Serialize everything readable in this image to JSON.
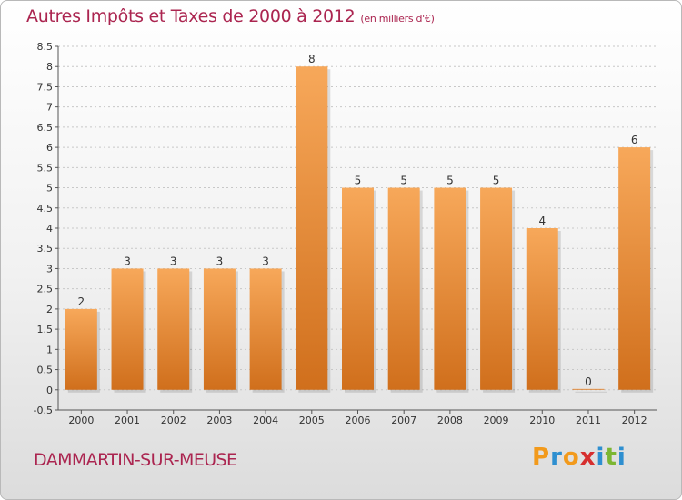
{
  "header": {
    "title": "Autres Impôts et Taxes de 2000 à 2012",
    "unit": "(en milliers d'€)"
  },
  "footer": {
    "location": "DAMMARTIN-SUR-MEUSE"
  },
  "logo": {
    "text": "Proxiti",
    "letters": [
      {
        "ch": "P",
        "color": "#f29a1c"
      },
      {
        "ch": "r",
        "color": "#2e8fd0"
      },
      {
        "ch": "o",
        "color": "#f29a1c"
      },
      {
        "ch": "x",
        "color": "#d62f2f"
      },
      {
        "ch": "i",
        "color": "#2e8fd0"
      },
      {
        "ch": "t",
        "color": "#7cb632"
      },
      {
        "ch": "i",
        "color": "#2e8fd0"
      }
    ]
  },
  "colors": {
    "bar_top": "#f7a85a",
    "bar_bottom": "#d06f1c",
    "title": "#ab2550",
    "grid": "#c8c8c8"
  },
  "chart_data": {
    "type": "bar",
    "title": "Autres Impôts et Taxes de 2000 à 2012",
    "xlabel": "",
    "ylabel": "",
    "categories": [
      "2000",
      "2001",
      "2002",
      "2003",
      "2004",
      "2005",
      "2006",
      "2007",
      "2008",
      "2009",
      "2010",
      "2011",
      "2012"
    ],
    "values": [
      2,
      3,
      3,
      3,
      3,
      8,
      5,
      5,
      5,
      5,
      4,
      0,
      6
    ],
    "data_labels": [
      "2",
      "3",
      "3",
      "3",
      "3",
      "8",
      "5",
      "5",
      "5",
      "5",
      "4",
      "0",
      "6"
    ],
    "ylim": [
      -0.5,
      8.5
    ],
    "yticks": [
      "-0.5",
      "0",
      "0.5",
      "1",
      "1.5",
      "2",
      "2.5",
      "3",
      "3.5",
      "4",
      "4.5",
      "5",
      "5.5",
      "6",
      "6.5",
      "7",
      "7.5",
      "8",
      "8.5"
    ],
    "ytick_values": [
      -0.5,
      0,
      0.5,
      1,
      1.5,
      2,
      2.5,
      3,
      3.5,
      4,
      4.5,
      5,
      5.5,
      6,
      6.5,
      7,
      7.5,
      8,
      8.5
    ],
    "grid": true
  }
}
